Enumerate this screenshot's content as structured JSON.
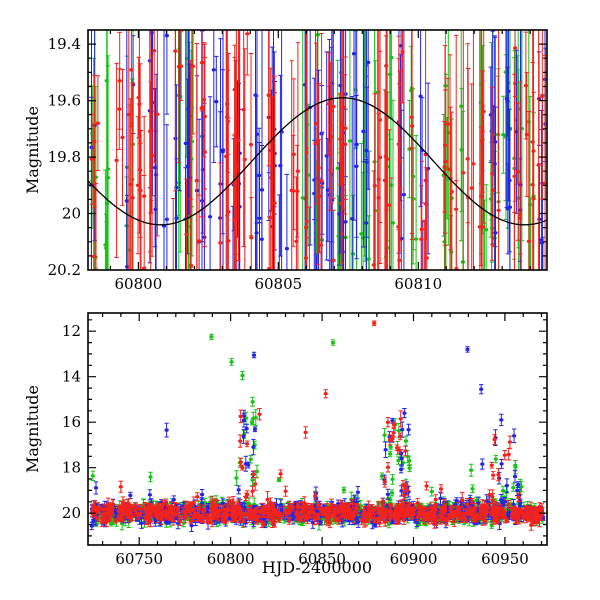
{
  "figure": {
    "background": "#ffffff",
    "frame_color": "#000000"
  },
  "colors": {
    "series_red": "#f2231d",
    "series_green": "#15c415",
    "series_blue": "#2224e6",
    "model_curve": "#000000"
  },
  "labels": {
    "magnitude": "Magnitude",
    "hjd": "HJD-2400000"
  },
  "chart_data": [
    {
      "type": "scatter",
      "panel": "top",
      "description": "Zoomed light curve: three-band photometry (red/green/blue points with error bars) around HJD 60798-60814 with a black periodic model curve; magnitude axis inverted",
      "ylabel": "Magnitude",
      "xlim": [
        60798.2,
        60814.6
      ],
      "ylim": [
        19.35,
        20.2
      ],
      "xticks": {
        "values": [
          60800,
          60805,
          60810
        ],
        "labels": [
          "60800",
          "60805",
          "60810"
        ],
        "minor_step": 1
      },
      "yticks": {
        "values": [
          19.4,
          19.6,
          19.8,
          20.0,
          20.2
        ],
        "labels": [
          "19.4",
          "19.6",
          "19.8",
          "20",
          "20.2"
        ],
        "minor_step": 0.05
      },
      "model_curve": {
        "mean_mag": 19.815,
        "amplitude": 0.225,
        "period_days": 13.0,
        "brightest_hjd": 60807.3
      },
      "sampling": {
        "seed": 11,
        "cluster_step": 0.42,
        "cluster_prob": 0.62,
        "points_min": 3,
        "points_max": 9,
        "y_mean": 19.85,
        "y_sigma": 0.21,
        "err_min": 0.12,
        "err_max": 0.5
      }
    },
    {
      "type": "scatter",
      "panel": "bottom",
      "description": "Full light curve HJD 60725-60970: quiescent band near magnitude 20 in three bands with bright outbursts/flares reaching magnitude ~11.7",
      "xlabel": "HJD-2400000",
      "ylabel": "Magnitude",
      "xlim": [
        60722,
        60973
      ],
      "ylim": [
        11.2,
        21.4
      ],
      "xticks": {
        "values": [
          60750,
          60800,
          60850,
          60900,
          60950
        ],
        "labels": [
          "60750",
          "60800",
          "60850",
          "60900",
          "60950"
        ],
        "minor_step": 10
      },
      "yticks": {
        "values": [
          12,
          14,
          16,
          18,
          20
        ],
        "labels": [
          "12",
          "14",
          "16",
          "18",
          "20"
        ],
        "minor_step": 0.5
      },
      "sampling": {
        "seed": 7,
        "n_per_color": 620,
        "y_mean": 20.0,
        "y_sigma": 0.21,
        "bright_tail_prob": 0.05,
        "bright_tail_max": 2.0,
        "err_min": 0.07,
        "err_max": 0.28
      },
      "flare_clusters": [
        {
          "x_start": 60804,
          "x_end": 60816,
          "n_per_color": 10,
          "y_min": 15.5,
          "y_max": 19.3
        },
        {
          "x_start": 60884,
          "x_end": 60898,
          "n_per_color": 14,
          "y_min": 15.8,
          "y_max": 19.2
        },
        {
          "x_start": 60928,
          "x_end": 60960,
          "n_per_color": 8,
          "y_min": 16.5,
          "y_max": 19.3
        }
      ],
      "outliers": [
        {
          "x": 60878.5,
          "mag": 11.65,
          "err": 0.1,
          "color": "red"
        },
        {
          "x": 60852.0,
          "mag": 14.75,
          "err": 0.18,
          "color": "red"
        },
        {
          "x": 60841.0,
          "mag": 16.45,
          "err": 0.25,
          "color": "red"
        },
        {
          "x": 60886.0,
          "mag": 16.0,
          "err": 0.2,
          "color": "red"
        },
        {
          "x": 60789.5,
          "mag": 12.25,
          "err": 0.12,
          "color": "green"
        },
        {
          "x": 60800.5,
          "mag": 13.35,
          "err": 0.15,
          "color": "green"
        },
        {
          "x": 60806.5,
          "mag": 13.95,
          "err": 0.18,
          "color": "green"
        },
        {
          "x": 60856.0,
          "mag": 12.5,
          "err": 0.12,
          "color": "green"
        },
        {
          "x": 60812.0,
          "mag": 15.1,
          "err": 0.2,
          "color": "green"
        },
        {
          "x": 60890.0,
          "mag": 16.1,
          "err": 0.25,
          "color": "green"
        },
        {
          "x": 60812.8,
          "mag": 13.05,
          "err": 0.12,
          "color": "blue"
        },
        {
          "x": 60929.5,
          "mag": 12.8,
          "err": 0.12,
          "color": "blue"
        },
        {
          "x": 60937.0,
          "mag": 14.55,
          "err": 0.2,
          "color": "blue"
        },
        {
          "x": 60948.0,
          "mag": 15.9,
          "err": 0.25,
          "color": "blue"
        },
        {
          "x": 60955.0,
          "mag": 16.6,
          "err": 0.3,
          "color": "blue"
        },
        {
          "x": 60895.0,
          "mag": 15.6,
          "err": 0.2,
          "color": "blue"
        },
        {
          "x": 60765.0,
          "mag": 16.35,
          "err": 0.3,
          "color": "blue"
        }
      ]
    }
  ]
}
